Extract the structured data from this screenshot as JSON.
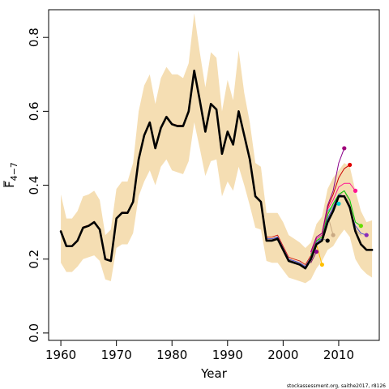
{
  "chart_data": {
    "type": "line",
    "title": "",
    "xlabel": "Year",
    "ylabel_main": "F",
    "ylabel_sub": "4−7",
    "xlim": [
      1957.8,
      2017.3
    ],
    "ylim": [
      -0.02,
      0.875
    ],
    "xticks": [
      1960,
      1970,
      1980,
      1990,
      2000,
      2010
    ],
    "yticks": [
      0.0,
      0.2,
      0.4,
      0.6,
      0.8
    ],
    "ytick_labels": [
      "0.0",
      "0.2",
      "0.4",
      "0.6",
      "0.8"
    ],
    "grid": false,
    "legend": "none",
    "footnote": "stockassessment.org, saithe2017, r8126",
    "band_color": "#f5deb3",
    "band": {
      "x": [
        1960,
        1961,
        1962,
        1963,
        1964,
        1965,
        1966,
        1967,
        1968,
        1969,
        1970,
        1971,
        1972,
        1973,
        1974,
        1975,
        1976,
        1977,
        1978,
        1979,
        1980,
        1981,
        1982,
        1983,
        1984,
        1985,
        1986,
        1987,
        1988,
        1989,
        1990,
        1991,
        1992,
        1993,
        1994,
        1995,
        1996,
        1997,
        1998,
        1999,
        2000,
        2001,
        2002,
        2003,
        2004,
        2005,
        2006,
        2007,
        2008,
        2009,
        2010,
        2011,
        2012,
        2013,
        2014,
        2015,
        2016
      ],
      "lower": [
        0.19,
        0.165,
        0.165,
        0.18,
        0.2,
        0.205,
        0.21,
        0.195,
        0.145,
        0.14,
        0.23,
        0.24,
        0.24,
        0.27,
        0.37,
        0.41,
        0.44,
        0.4,
        0.45,
        0.47,
        0.44,
        0.435,
        0.43,
        0.465,
        0.57,
        0.5,
        0.425,
        0.465,
        0.47,
        0.37,
        0.41,
        0.385,
        0.45,
        0.4,
        0.345,
        0.285,
        0.28,
        0.195,
        0.19,
        0.19,
        0.17,
        0.15,
        0.145,
        0.14,
        0.135,
        0.145,
        0.175,
        0.195,
        0.225,
        0.235,
        0.26,
        0.28,
        0.26,
        0.2,
        0.175,
        0.16,
        0.15
      ],
      "upper": [
        0.375,
        0.31,
        0.31,
        0.33,
        0.37,
        0.375,
        0.385,
        0.36,
        0.265,
        0.28,
        0.39,
        0.41,
        0.41,
        0.46,
        0.6,
        0.67,
        0.7,
        0.62,
        0.69,
        0.72,
        0.7,
        0.7,
        0.69,
        0.73,
        0.865,
        0.76,
        0.665,
        0.76,
        0.745,
        0.6,
        0.685,
        0.63,
        0.765,
        0.65,
        0.57,
        0.46,
        0.45,
        0.325,
        0.325,
        0.325,
        0.3,
        0.265,
        0.255,
        0.245,
        0.23,
        0.245,
        0.295,
        0.315,
        0.39,
        0.42,
        0.44,
        0.46,
        0.45,
        0.385,
        0.33,
        0.3,
        0.305
      ]
    },
    "series": [
      {
        "color": "#000000",
        "width": 2.6,
        "x": [
          1960,
          1961,
          1962,
          1963,
          1964,
          1965,
          1966,
          1967,
          1968,
          1969,
          1970,
          1971,
          1972,
          1973,
          1974,
          1975,
          1976,
          1977,
          1978,
          1979,
          1980,
          1981,
          1982,
          1983,
          1984,
          1985,
          1986,
          1987,
          1988,
          1989,
          1990,
          1991,
          1992,
          1993,
          1994,
          1995,
          1996,
          1997,
          1998,
          1999,
          2000,
          2001,
          2002,
          2003,
          2004,
          2005,
          2006,
          2007,
          2008,
          2009,
          2010,
          2011,
          2012,
          2013,
          2014,
          2015,
          2016
        ],
        "y": [
          0.275,
          0.235,
          0.235,
          0.25,
          0.285,
          0.29,
          0.3,
          0.28,
          0.2,
          0.195,
          0.31,
          0.325,
          0.325,
          0.355,
          0.47,
          0.535,
          0.57,
          0.5,
          0.555,
          0.585,
          0.565,
          0.56,
          0.56,
          0.6,
          0.71,
          0.63,
          0.545,
          0.62,
          0.605,
          0.485,
          0.545,
          0.51,
          0.6,
          0.535,
          0.47,
          0.37,
          0.355,
          0.25,
          0.25,
          0.255,
          0.225,
          0.195,
          0.19,
          0.185,
          0.175,
          0.2,
          0.24,
          0.25,
          0.3,
          0.33,
          0.37,
          0.37,
          0.34,
          0.275,
          0.24,
          0.225,
          0.225
        ]
      },
      {
        "color": "#7f1d6e",
        "width": 1,
        "x": [
          2005,
          2006
        ],
        "y": [
          0.19,
          0.22
        ]
      },
      {
        "color": "#ffbf00",
        "width": 1,
        "x": [
          2005,
          2006,
          2007
        ],
        "y": [
          0.205,
          0.24,
          0.185
        ]
      },
      {
        "color": "#888888",
        "width": 1,
        "x": [
          2005,
          2006,
          2007,
          2008
        ],
        "y": [
          0.21,
          0.25,
          0.255,
          0.25
        ]
      },
      {
        "color": "#c8a882",
        "width": 1,
        "x": [
          2005,
          2006,
          2007,
          2008,
          2009
        ],
        "y": [
          0.215,
          0.255,
          0.265,
          0.32,
          0.265
        ]
      },
      {
        "color": "#00ced1",
        "width": 1,
        "x": [
          2005,
          2006,
          2007,
          2008,
          2009,
          2010
        ],
        "y": [
          0.215,
          0.255,
          0.265,
          0.33,
          0.345,
          0.35
        ]
      },
      {
        "color": "#c8a882",
        "width": 1,
        "x": [
          2005,
          2006,
          2007,
          2008,
          2009,
          2010,
          2011,
          2012,
          2013,
          2014
        ],
        "y": [
          0.21,
          0.25,
          0.26,
          0.325,
          0.345,
          0.37,
          0.385,
          0.35,
          0.28,
          0.265
        ]
      },
      {
        "color": "#00cc00",
        "width": 1,
        "x": [
          2005,
          2006,
          2007,
          2008,
          2009,
          2010,
          2011,
          2012,
          2013,
          2014
        ],
        "y": [
          0.21,
          0.25,
          0.26,
          0.32,
          0.35,
          0.375,
          0.385,
          0.36,
          0.3,
          0.29
        ]
      },
      {
        "color": "#ff1493",
        "width": 1,
        "x": [
          2005,
          2006,
          2007,
          2008,
          2009,
          2010,
          2011,
          2012,
          2013
        ],
        "y": [
          0.215,
          0.255,
          0.265,
          0.335,
          0.36,
          0.395,
          0.405,
          0.405,
          0.385
        ]
      },
      {
        "color": "#cc0000",
        "width": 1,
        "x": [
          2005,
          2006,
          2007,
          2008,
          2009,
          2010,
          2011,
          2012
        ],
        "y": [
          0.22,
          0.26,
          0.27,
          0.34,
          0.375,
          0.42,
          0.445,
          0.455
        ]
      },
      {
        "color": "#8b008b",
        "width": 1,
        "x": [
          2005,
          2006,
          2007,
          2008,
          2009,
          2010,
          2011
        ],
        "y": [
          0.22,
          0.26,
          0.27,
          0.345,
          0.385,
          0.46,
          0.5
        ]
      },
      {
        "color": "#4b4bd0",
        "width": 1,
        "x": [
          1960,
          1961,
          1962,
          1963,
          1964,
          1965,
          1966,
          1967,
          1968,
          1969,
          1970,
          1971,
          1972,
          1973,
          1974,
          1975,
          1976,
          1977,
          1978,
          1979,
          1980,
          1981,
          1982,
          1983,
          1984,
          1985,
          1986,
          1987,
          1988,
          1989,
          1990,
          1991,
          1992,
          1993,
          1994,
          1995,
          1996,
          1997,
          1998,
          1999,
          2000,
          2001,
          2002,
          2003,
          2004,
          2005,
          2006,
          2007,
          2008,
          2009,
          2010,
          2011,
          2012,
          2013,
          2014,
          2015
        ],
        "y": [
          0.275,
          0.235,
          0.235,
          0.25,
          0.285,
          0.29,
          0.3,
          0.28,
          0.2,
          0.195,
          0.31,
          0.325,
          0.325,
          0.355,
          0.47,
          0.535,
          0.57,
          0.5,
          0.555,
          0.585,
          0.565,
          0.56,
          0.56,
          0.6,
          0.71,
          0.63,
          0.545,
          0.62,
          0.605,
          0.485,
          0.545,
          0.51,
          0.6,
          0.535,
          0.47,
          0.37,
          0.355,
          0.255,
          0.255,
          0.26,
          0.23,
          0.2,
          0.195,
          0.19,
          0.18,
          0.205,
          0.245,
          0.255,
          0.31,
          0.34,
          0.375,
          0.37,
          0.335,
          0.29,
          0.27,
          0.265
        ]
      },
      {
        "color": "#cc0000",
        "width": 0.8,
        "x": [
          1960,
          1961,
          1962,
          1963,
          1964,
          1965,
          1966,
          1967,
          1968,
          1969,
          1970,
          1971,
          1972,
          1973,
          1974,
          1975,
          1976,
          1977,
          1978,
          1979,
          1980,
          1981,
          1982,
          1983,
          1984,
          1985,
          1986,
          1987,
          1988,
          1989,
          1990,
          1991,
          1992,
          1993,
          1994,
          1995,
          1996,
          1997,
          1998,
          1999,
          2000,
          2001,
          2002,
          2003,
          2004,
          2005
        ],
        "y": [
          0.277,
          0.237,
          0.237,
          0.252,
          0.287,
          0.292,
          0.302,
          0.282,
          0.202,
          0.197,
          0.312,
          0.327,
          0.327,
          0.357,
          0.472,
          0.537,
          0.572,
          0.502,
          0.557,
          0.587,
          0.567,
          0.562,
          0.562,
          0.602,
          0.712,
          0.632,
          0.547,
          0.622,
          0.607,
          0.487,
          0.547,
          0.512,
          0.602,
          0.537,
          0.472,
          0.372,
          0.357,
          0.26,
          0.26,
          0.265,
          0.235,
          0.205,
          0.2,
          0.195,
          0.185,
          0.21
        ]
      }
    ],
    "endpoints": [
      {
        "x": 2006,
        "y": 0.22,
        "color": "#8b008b"
      },
      {
        "x": 2007,
        "y": 0.185,
        "color": "#ffbf00"
      },
      {
        "x": 2008,
        "y": 0.25,
        "color": "#000000"
      },
      {
        "x": 2009,
        "y": 0.265,
        "color": "#c8a882"
      },
      {
        "x": 2010,
        "y": 0.35,
        "color": "#00ced1"
      },
      {
        "x": 2011,
        "y": 0.5,
        "color": "#a0007a"
      },
      {
        "x": 2012,
        "y": 0.455,
        "color": "#e00000"
      },
      {
        "x": 2013,
        "y": 0.385,
        "color": "#ff1493"
      },
      {
        "x": 2014,
        "y": 0.29,
        "color": "#66dd00"
      },
      {
        "x": 2015,
        "y": 0.265,
        "color": "#8b2bb8"
      }
    ]
  }
}
